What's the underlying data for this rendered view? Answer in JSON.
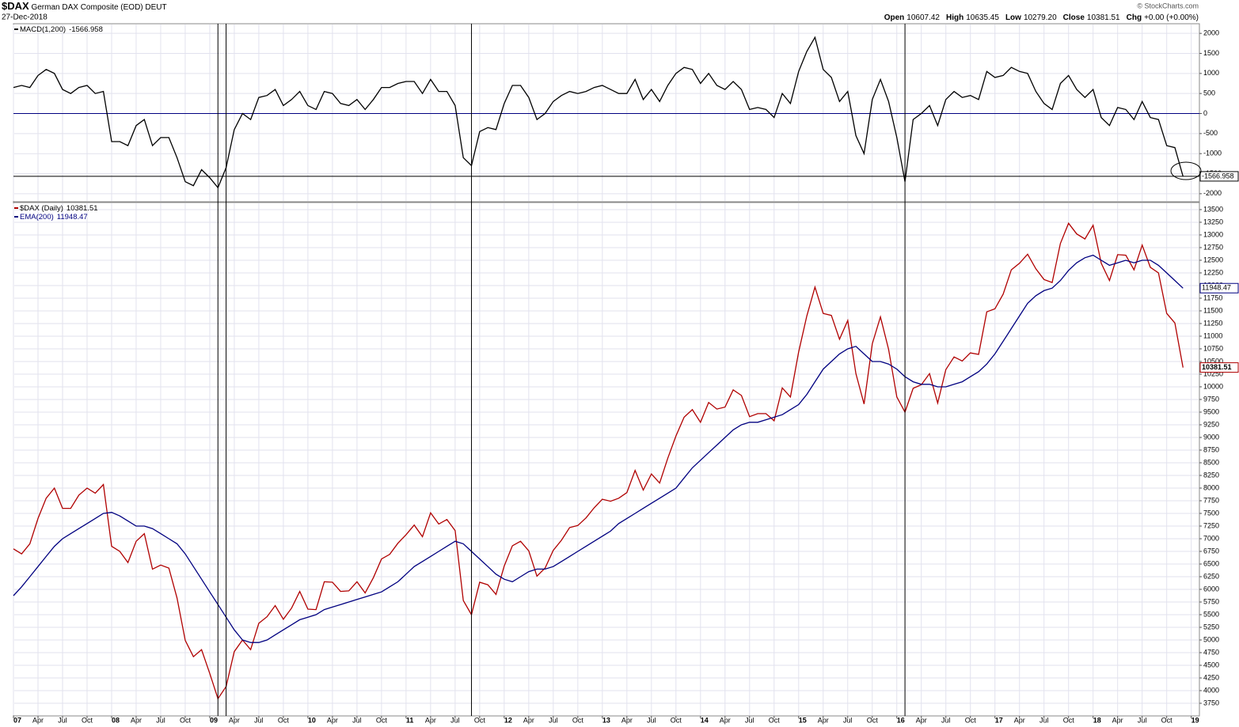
{
  "header": {
    "symbol": "$DAX",
    "name": "German DAX Composite (EOD) DEUT",
    "date": "27-Dec-2018",
    "credit": "© StockCharts.com",
    "quote": [
      {
        "label": "Open",
        "value": 10607.42
      },
      {
        "label": "High",
        "value": 10635.45
      },
      {
        "label": "Low",
        "value": {
          "value": 10279.2,
          "label": "10279.20"
        }
      },
      {
        "label": "Close",
        "value": 10381.51
      },
      {
        "label": "Chg",
        "value": "+0.00 (+0.00%)"
      }
    ]
  },
  "annotations": {
    "vlines": [
      "2009-02",
      "2009-03",
      "2011-09",
      "2016-02"
    ]
  },
  "chart_data": [
    {
      "type": "line",
      "xlim": [
        "2007-01",
        "2019-02"
      ],
      "ylim": [
        -2200,
        2240
      ],
      "yticks": [
        -2000,
        -1500,
        -1000,
        -500,
        0,
        500,
        1000,
        1500,
        2000
      ],
      "grid": true,
      "hlines": [
        {
          "value": 0,
          "color": "#000080"
        },
        {
          "value": -1566.958,
          "color": "#000000"
        }
      ],
      "x": [
        "2007-01",
        "2007-02",
        "2007-03",
        "2007-04",
        "2007-05",
        "2007-06",
        "2007-07",
        "2007-08",
        "2007-09",
        "2007-10",
        "2007-11",
        "2007-12",
        "2008-01",
        "2008-02",
        "2008-03",
        "2008-04",
        "2008-05",
        "2008-06",
        "2008-07",
        "2008-08",
        "2008-09",
        "2008-10",
        "2008-11",
        "2008-12",
        "2009-01",
        "2009-02",
        "2009-03",
        "2009-04",
        "2009-05",
        "2009-06",
        "2009-07",
        "2009-08",
        "2009-09",
        "2009-10",
        "2009-11",
        "2009-12",
        "2010-01",
        "2010-02",
        "2010-03",
        "2010-04",
        "2010-05",
        "2010-06",
        "2010-07",
        "2010-08",
        "2010-09",
        "2010-10",
        "2010-11",
        "2010-12",
        "2011-01",
        "2011-02",
        "2011-03",
        "2011-04",
        "2011-05",
        "2011-06",
        "2011-07",
        "2011-08",
        "2011-09",
        "2011-10",
        "2011-11",
        "2011-12",
        "2012-01",
        "2012-02",
        "2012-03",
        "2012-04",
        "2012-05",
        "2012-06",
        "2012-07",
        "2012-08",
        "2012-09",
        "2012-10",
        "2012-11",
        "2012-12",
        "2013-01",
        "2013-02",
        "2013-03",
        "2013-04",
        "2013-05",
        "2013-06",
        "2013-07",
        "2013-08",
        "2013-09",
        "2013-10",
        "2013-11",
        "2013-12",
        "2014-01",
        "2014-02",
        "2014-03",
        "2014-04",
        "2014-05",
        "2014-06",
        "2014-07",
        "2014-08",
        "2014-09",
        "2014-10",
        "2014-11",
        "2014-12",
        "2015-01",
        "2015-02",
        "2015-03",
        "2015-04",
        "2015-05",
        "2015-06",
        "2015-07",
        "2015-08",
        "2015-09",
        "2015-10",
        "2015-11",
        "2015-12",
        "2016-01",
        "2016-02",
        "2016-03",
        "2016-04",
        "2016-05",
        "2016-06",
        "2016-07",
        "2016-08",
        "2016-09",
        "2016-10",
        "2016-11",
        "2016-12",
        "2017-01",
        "2017-02",
        "2017-03",
        "2017-04",
        "2017-05",
        "2017-06",
        "2017-07",
        "2017-08",
        "2017-09",
        "2017-10",
        "2017-11",
        "2017-12",
        "2018-01",
        "2018-02",
        "2018-03",
        "2018-04",
        "2018-05",
        "2018-06",
        "2018-07",
        "2018-08",
        "2018-09",
        "2018-10",
        "2018-11",
        "2018-12"
      ],
      "series": [
        {
          "name": "MACD(1,200)",
          "color": "#000000",
          "values": [
            650,
            700,
            650,
            950,
            1100,
            1000,
            600,
            500,
            650,
            700,
            500,
            550,
            -700,
            -700,
            -800,
            -300,
            -150,
            -800,
            -600,
            -600,
            -1100,
            -1700,
            -1800,
            -1400,
            -1600,
            -1850,
            -1350,
            -400,
            0,
            -150,
            400,
            450,
            600,
            200,
            350,
            550,
            200,
            100,
            550,
            500,
            250,
            200,
            350,
            100,
            350,
            650,
            650,
            750,
            800,
            800,
            500,
            850,
            550,
            550,
            200,
            -1100,
            -1300,
            -450,
            -350,
            -400,
            250,
            700,
            700,
            400,
            -150,
            0,
            300,
            450,
            550,
            500,
            550,
            650,
            700,
            600,
            500,
            500,
            850,
            350,
            600,
            300,
            700,
            1000,
            1150,
            1100,
            750,
            1000,
            700,
            600,
            800,
            600,
            100,
            150,
            100,
            -100,
            500,
            250,
            1050,
            1550,
            1900,
            1100,
            900,
            300,
            550,
            -550,
            -1000,
            350,
            850,
            300,
            -600,
            -1700,
            -150,
            0,
            200,
            -300,
            350,
            550,
            400,
            450,
            350,
            1050,
            900,
            950,
            1150,
            1050,
            1000,
            550,
            250,
            100,
            750,
            950,
            600,
            400,
            600,
            -100,
            -300,
            150,
            100,
            -150,
            300,
            -100,
            -150,
            -800,
            -850,
            -1566.958
          ]
        }
      ]
    },
    {
      "type": "line",
      "xlim": [
        "2007-01",
        "2019-02"
      ],
      "ylim": [
        3500,
        13640
      ],
      "grid": true,
      "yticks": [
        3750,
        4000,
        4250,
        4500,
        4750,
        5000,
        5250,
        5500,
        5750,
        6000,
        6250,
        6500,
        6750,
        7000,
        7250,
        7500,
        7750,
        8000,
        8250,
        8500,
        8750,
        9000,
        9250,
        9500,
        9750,
        10000,
        10250,
        10500,
        10750,
        11000,
        11250,
        11500,
        11750,
        12000,
        12250,
        12500,
        12750,
        13000,
        13250,
        13500
      ],
      "xticks": [
        {
          "value": "2007-01",
          "label": "07"
        },
        {
          "value": "2007-04",
          "label": "Apr"
        },
        {
          "value": "2007-07",
          "label": "Jul"
        },
        {
          "value": "2007-10",
          "label": "Oct"
        },
        {
          "value": "2008-01",
          "label": "08"
        },
        {
          "value": "2008-04",
          "label": "Apr"
        },
        {
          "value": "2008-07",
          "label": "Jul"
        },
        {
          "value": "2008-10",
          "label": "Oct"
        },
        {
          "value": "2009-01",
          "label": "09"
        },
        {
          "value": "2009-04",
          "label": "Apr"
        },
        {
          "value": "2009-07",
          "label": "Jul"
        },
        {
          "value": "2009-10",
          "label": "Oct"
        },
        {
          "value": "2010-01",
          "label": "10"
        },
        {
          "value": "2010-04",
          "label": "Apr"
        },
        {
          "value": "2010-07",
          "label": "Jul"
        },
        {
          "value": "2010-10",
          "label": "Oct"
        },
        {
          "value": "2011-01",
          "label": "11"
        },
        {
          "value": "2011-04",
          "label": "Apr"
        },
        {
          "value": "2011-07",
          "label": "Jul"
        },
        {
          "value": "2011-10",
          "label": "Oct"
        },
        {
          "value": "2012-01",
          "label": "12"
        },
        {
          "value": "2012-04",
          "label": "Apr"
        },
        {
          "value": "2012-07",
          "label": "Jul"
        },
        {
          "value": "2012-10",
          "label": "Oct"
        },
        {
          "value": "2013-01",
          "label": "13"
        },
        {
          "value": "2013-04",
          "label": "Apr"
        },
        {
          "value": "2013-07",
          "label": "Jul"
        },
        {
          "value": "2013-10",
          "label": "Oct"
        },
        {
          "value": "2014-01",
          "label": "14"
        },
        {
          "value": "2014-04",
          "label": "Apr"
        },
        {
          "value": "2014-07",
          "label": "Jul"
        },
        {
          "value": "2014-10",
          "label": "Oct"
        },
        {
          "value": "2015-01",
          "label": "15"
        },
        {
          "value": "2015-04",
          "label": "Apr"
        },
        {
          "value": "2015-07",
          "label": "Jul"
        },
        {
          "value": "2015-10",
          "label": "Oct"
        },
        {
          "value": "2016-01",
          "label": "16"
        },
        {
          "value": "2016-04",
          "label": "Apr"
        },
        {
          "value": "2016-07",
          "label": "Jul"
        },
        {
          "value": "2016-10",
          "label": "Oct"
        },
        {
          "value": "2017-01",
          "label": "17"
        },
        {
          "value": "2017-04",
          "label": "Apr"
        },
        {
          "value": "2017-07",
          "label": "Jul"
        },
        {
          "value": "2017-10",
          "label": "Oct"
        },
        {
          "value": "2018-01",
          "label": "18"
        },
        {
          "value": "2018-04",
          "label": "Apr"
        },
        {
          "value": "2018-07",
          "label": "Jul"
        },
        {
          "value": "2018-10",
          "label": "Oct"
        },
        {
          "value": "2019-01",
          "label": "19"
        }
      ],
      "x": [
        "2007-01",
        "2007-02",
        "2007-03",
        "2007-04",
        "2007-05",
        "2007-06",
        "2007-07",
        "2007-08",
        "2007-09",
        "2007-10",
        "2007-11",
        "2007-12",
        "2008-01",
        "2008-02",
        "2008-03",
        "2008-04",
        "2008-05",
        "2008-06",
        "2008-07",
        "2008-08",
        "2008-09",
        "2008-10",
        "2008-11",
        "2008-12",
        "2009-01",
        "2009-02",
        "2009-03",
        "2009-04",
        "2009-05",
        "2009-06",
        "2009-07",
        "2009-08",
        "2009-09",
        "2009-10",
        "2009-11",
        "2009-12",
        "2010-01",
        "2010-02",
        "2010-03",
        "2010-04",
        "2010-05",
        "2010-06",
        "2010-07",
        "2010-08",
        "2010-09",
        "2010-10",
        "2010-11",
        "2010-12",
        "2011-01",
        "2011-02",
        "2011-03",
        "2011-04",
        "2011-05",
        "2011-06",
        "2011-07",
        "2011-08",
        "2011-09",
        "2011-10",
        "2011-11",
        "2011-12",
        "2012-01",
        "2012-02",
        "2012-03",
        "2012-04",
        "2012-05",
        "2012-06",
        "2012-07",
        "2012-08",
        "2012-09",
        "2012-10",
        "2012-11",
        "2012-12",
        "2013-01",
        "2013-02",
        "2013-03",
        "2013-04",
        "2013-05",
        "2013-06",
        "2013-07",
        "2013-08",
        "2013-09",
        "2013-10",
        "2013-11",
        "2013-12",
        "2014-01",
        "2014-02",
        "2014-03",
        "2014-04",
        "2014-05",
        "2014-06",
        "2014-07",
        "2014-08",
        "2014-09",
        "2014-10",
        "2014-11",
        "2014-12",
        "2015-01",
        "2015-02",
        "2015-03",
        "2015-04",
        "2015-05",
        "2015-06",
        "2015-07",
        "2015-08",
        "2015-09",
        "2015-10",
        "2015-11",
        "2015-12",
        "2016-01",
        "2016-02",
        "2016-03",
        "2016-04",
        "2016-05",
        "2016-06",
        "2016-07",
        "2016-08",
        "2016-09",
        "2016-10",
        "2016-11",
        "2016-12",
        "2017-01",
        "2017-02",
        "2017-03",
        "2017-04",
        "2017-05",
        "2017-06",
        "2017-07",
        "2017-08",
        "2017-09",
        "2017-10",
        "2017-11",
        "2017-12",
        "2018-01",
        "2018-02",
        "2018-03",
        "2018-04",
        "2018-05",
        "2018-06",
        "2018-07",
        "2018-08",
        "2018-09",
        "2018-10",
        "2018-11",
        "2018-12"
      ],
      "series": [
        {
          "name": "$DAX (Daily)",
          "color": "#b00000",
          "values": [
            6800,
            6700,
            6900,
            7400,
            7800,
            8000,
            7600,
            7600,
            7860,
            8000,
            7900,
            8070,
            6850,
            6750,
            6530,
            6950,
            7100,
            6400,
            6480,
            6420,
            5830,
            4990,
            4670,
            4810,
            4340,
            3840,
            4080,
            4770,
            5000,
            4810,
            5330,
            5460,
            5680,
            5410,
            5630,
            5960,
            5610,
            5600,
            6150,
            6140,
            5960,
            5970,
            6150,
            5930,
            6230,
            6600,
            6690,
            6910,
            7080,
            7270,
            7040,
            7510,
            7290,
            7380,
            7160,
            5780,
            5500,
            6140,
            6090,
            5900,
            6460,
            6860,
            6950,
            6760,
            6260,
            6420,
            6770,
            6970,
            7220,
            7260,
            7410,
            7610,
            7780,
            7740,
            7800,
            7910,
            8350,
            7960,
            8280,
            8100,
            8590,
            9030,
            9400,
            9550,
            9300,
            9690,
            9560,
            9600,
            9940,
            9830,
            9410,
            9470,
            9470,
            9330,
            9980,
            9800,
            10690,
            11400,
            11970,
            11450,
            11410,
            10940,
            11310,
            10260,
            9660,
            10850,
            11380,
            10740,
            9800,
            9500,
            9970,
            10040,
            10260,
            9680,
            10340,
            10590,
            10510,
            10670,
            10640,
            11480,
            11540,
            11830,
            12310,
            12440,
            12620,
            12330,
            12120,
            12060,
            12830,
            13230,
            13020,
            12920,
            13190,
            12440,
            12100,
            12610,
            12600,
            12310,
            12800,
            12360,
            12250,
            11450,
            11260,
            10381.51
          ]
        },
        {
          "name": "EMA(200)",
          "color": "#000080",
          "values": [
            5875,
            6050,
            6250,
            6450,
            6650,
            6850,
            7000,
            7100,
            7200,
            7300,
            7400,
            7500,
            7520,
            7450,
            7350,
            7250,
            7250,
            7200,
            7100,
            7000,
            6900,
            6700,
            6450,
            6200,
            5950,
            5700,
            5450,
            5200,
            5000,
            4950,
            4950,
            5000,
            5100,
            5200,
            5300,
            5400,
            5450,
            5500,
            5600,
            5650,
            5700,
            5750,
            5800,
            5850,
            5900,
            5950,
            6050,
            6150,
            6300,
            6450,
            6550,
            6650,
            6750,
            6850,
            6950,
            6900,
            6750,
            6600,
            6450,
            6300,
            6200,
            6150,
            6250,
            6350,
            6400,
            6400,
            6450,
            6550,
            6650,
            6750,
            6850,
            6950,
            7050,
            7150,
            7300,
            7400,
            7500,
            7600,
            7700,
            7800,
            7900,
            8000,
            8200,
            8400,
            8550,
            8700,
            8850,
            9000,
            9150,
            9250,
            9300,
            9300,
            9350,
            9400,
            9450,
            9550,
            9650,
            9850,
            10100,
            10350,
            10500,
            10650,
            10750,
            10800,
            10650,
            10500,
            10500,
            10450,
            10350,
            10200,
            10100,
            10050,
            10050,
            10000,
            10000,
            10050,
            10100,
            10200,
            10300,
            10450,
            10650,
            10900,
            11150,
            11400,
            11650,
            11800,
            11900,
            11950,
            12100,
            12300,
            12450,
            12550,
            12600,
            12500,
            12400,
            12450,
            12500,
            12450,
            12500,
            12500,
            12400,
            12250,
            12100,
            11948.47
          ]
        }
      ]
    }
  ]
}
